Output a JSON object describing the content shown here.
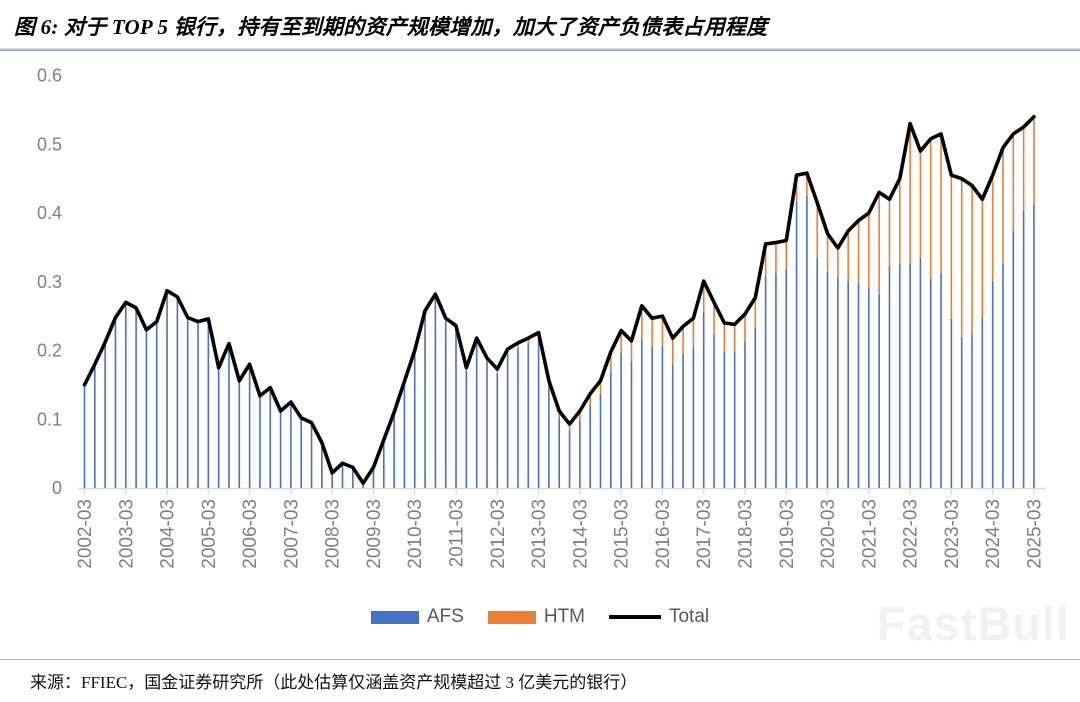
{
  "header": {
    "title": "图 6: 对于 TOP 5 银行，持有至到期的资产规模增加，加大了资产负债表占用程度"
  },
  "footer": {
    "source": "来源：FFIEC，国金证券研究所（此处估算仅涵盖资产规模超过 3 亿美元的银行）"
  },
  "watermark": {
    "text": "FastBull"
  },
  "chart_data": {
    "type": "stacked-bar+line",
    "title": "",
    "xlabel": "",
    "ylabel": "",
    "ylim": [
      0,
      0.6
    ],
    "y_ticks": [
      "0",
      "0.1",
      "0.2",
      "0.3",
      "0.4",
      "0.5",
      "0.6"
    ],
    "grid": false,
    "legend_position": "bottom",
    "axis_color": "#d9d9d9",
    "tick_label_color": "#808080",
    "x_tick_every": 4,
    "categories": [
      "2002-03",
      "2002-06",
      "2002-09",
      "2002-12",
      "2003-03",
      "2003-06",
      "2003-09",
      "2003-12",
      "2004-03",
      "2004-06",
      "2004-09",
      "2004-12",
      "2005-03",
      "2005-06",
      "2005-09",
      "2005-12",
      "2006-03",
      "2006-06",
      "2006-09",
      "2006-12",
      "2007-03",
      "2007-06",
      "2007-09",
      "2007-12",
      "2008-03",
      "2008-06",
      "2008-09",
      "2008-12",
      "2009-03",
      "2009-06",
      "2009-09",
      "2009-12",
      "2010-03",
      "2010-06",
      "2010-09",
      "2010-12",
      "2011-03",
      "2011-06",
      "2011-09",
      "2011-12",
      "2012-03",
      "2012-06",
      "2012-09",
      "2012-12",
      "2013-03",
      "2013-06",
      "2013-09",
      "2013-12",
      "2014-03",
      "2014-06",
      "2014-09",
      "2014-12",
      "2015-03",
      "2015-06",
      "2015-09",
      "2015-12",
      "2016-03",
      "2016-06",
      "2016-09",
      "2016-12",
      "2017-03",
      "2017-06",
      "2017-09",
      "2017-12",
      "2018-03",
      "2018-06",
      "2018-09",
      "2018-12",
      "2019-03",
      "2019-06",
      "2019-09",
      "2019-12",
      "2020-03",
      "2020-06",
      "2020-09",
      "2020-12",
      "2021-03",
      "2021-06",
      "2021-09",
      "2021-12",
      "2022-03",
      "2022-06",
      "2022-09",
      "2022-12",
      "2023-03",
      "2023-06",
      "2023-09",
      "2023-12",
      "2024-03",
      "2024-06",
      "2024-09",
      "2024-12",
      "2025-03"
    ],
    "series": [
      {
        "name": "AFS",
        "type": "bar",
        "color": "#4472C4",
        "values": [
          0.15,
          0.18,
          0.212,
          0.248,
          0.27,
          0.262,
          0.23,
          0.242,
          0.287,
          0.278,
          0.248,
          0.242,
          0.246,
          0.175,
          0.21,
          0.156,
          0.18,
          0.134,
          0.146,
          0.112,
          0.125,
          0.102,
          0.095,
          0.066,
          0.022,
          0.036,
          0.03,
          0.007,
          0.03,
          0.07,
          0.11,
          0.155,
          0.196,
          0.254,
          0.277,
          0.242,
          0.231,
          0.17,
          0.212,
          0.183,
          0.167,
          0.195,
          0.204,
          0.21,
          0.218,
          0.148,
          0.103,
          0.083,
          0.098,
          0.121,
          0.136,
          0.17,
          0.197,
          0.184,
          0.217,
          0.205,
          0.206,
          0.18,
          0.195,
          0.205,
          0.257,
          0.224,
          0.198,
          0.198,
          0.213,
          0.233,
          0.309,
          0.312,
          0.319,
          0.417,
          0.425,
          0.335,
          0.315,
          0.307,
          0.301,
          0.298,
          0.29,
          0.282,
          0.323,
          0.326,
          0.326,
          0.335,
          0.304,
          0.313,
          0.246,
          0.219,
          0.224,
          0.248,
          0.301,
          0.326,
          0.374,
          0.403,
          0.413
        ]
      },
      {
        "name": "HTM",
        "type": "bar",
        "color": "#ED7D31",
        "values": [
          0,
          0,
          0,
          0,
          0,
          0,
          0,
          0,
          0,
          0,
          0,
          0,
          0,
          0,
          0,
          0,
          0,
          0,
          0,
          0,
          0,
          0,
          0,
          0,
          0,
          0,
          0,
          0,
          0,
          0,
          0,
          0,
          0.004,
          0.004,
          0.005,
          0.005,
          0.005,
          0.005,
          0.006,
          0.006,
          0.006,
          0.007,
          0.007,
          0.008,
          0.008,
          0.008,
          0.009,
          0.01,
          0.014,
          0.016,
          0.02,
          0.028,
          0.032,
          0.03,
          0.048,
          0.042,
          0.044,
          0.038,
          0.04,
          0.042,
          0.044,
          0.046,
          0.042,
          0.04,
          0.04,
          0.044,
          0.046,
          0.045,
          0.041,
          0.038,
          0.033,
          0.08,
          0.055,
          0.042,
          0.073,
          0.091,
          0.11,
          0.148,
          0.097,
          0.124,
          0.204,
          0.155,
          0.204,
          0.202,
          0.209,
          0.231,
          0.216,
          0.172,
          0.154,
          0.169,
          0.141,
          0.122,
          0.127
        ]
      },
      {
        "name": "Total",
        "type": "line",
        "color": "#000000",
        "values": [
          0.15,
          0.18,
          0.212,
          0.248,
          0.27,
          0.262,
          0.23,
          0.242,
          0.287,
          0.278,
          0.248,
          0.242,
          0.246,
          0.175,
          0.21,
          0.156,
          0.18,
          0.134,
          0.146,
          0.112,
          0.125,
          0.102,
          0.095,
          0.066,
          0.022,
          0.036,
          0.03,
          0.007,
          0.03,
          0.07,
          0.11,
          0.155,
          0.2,
          0.258,
          0.282,
          0.247,
          0.236,
          0.175,
          0.218,
          0.189,
          0.173,
          0.202,
          0.211,
          0.218,
          0.226,
          0.156,
          0.112,
          0.093,
          0.112,
          0.137,
          0.156,
          0.198,
          0.229,
          0.214,
          0.265,
          0.247,
          0.25,
          0.218,
          0.235,
          0.247,
          0.301,
          0.27,
          0.24,
          0.238,
          0.253,
          0.277,
          0.355,
          0.357,
          0.36,
          0.455,
          0.458,
          0.415,
          0.37,
          0.349,
          0.374,
          0.389,
          0.4,
          0.43,
          0.42,
          0.45,
          0.53,
          0.49,
          0.508,
          0.515,
          0.455,
          0.45,
          0.44,
          0.42,
          0.455,
          0.495,
          0.515,
          0.525,
          0.54
        ]
      }
    ]
  }
}
